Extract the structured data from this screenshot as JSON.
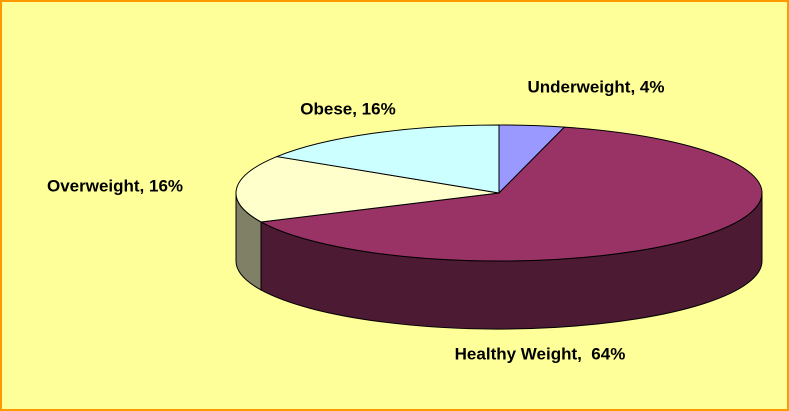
{
  "chart_data": {
    "type": "pie",
    "style": "3d",
    "labels": [
      "Underweight, 4%",
      "Healthy Weight,  64%",
      "Overweight, 16%",
      "Obese, 16%"
    ],
    "values": [
      4,
      64,
      16,
      16
    ],
    "colors": [
      "#9999ff",
      "#993366",
      "#ffffcc",
      "#ccffff"
    ]
  }
}
